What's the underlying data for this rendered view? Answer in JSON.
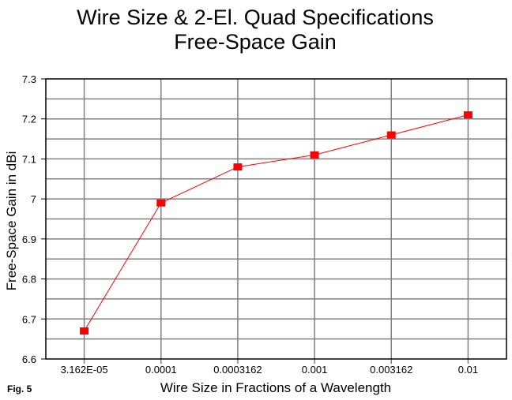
{
  "chart_data": {
    "type": "line",
    "title": [
      "Wire Size & 2-El. Quad Specifications",
      "Free-Space Gain"
    ],
    "xlabel": "Wire Size in Fractions of a Wavelength",
    "ylabel": "Free-Space Gain in dBi",
    "categories": [
      "3.162E-05",
      "0.0001",
      "0.0003162",
      "0.001",
      "0.003162",
      "0.01"
    ],
    "values": [
      6.67,
      6.99,
      7.08,
      7.11,
      7.16,
      7.21
    ],
    "ylim": [
      6.6,
      7.3
    ],
    "yticks": [
      "6.6",
      "6.7",
      "6.8",
      "6.9",
      "7",
      "7.1",
      "7.2",
      "7.3"
    ],
    "grid": true,
    "marker": "square",
    "colors": {
      "series": "#ff0000",
      "grid": "#808080",
      "axis": "#000000"
    },
    "annotation": "Fig. 5"
  }
}
